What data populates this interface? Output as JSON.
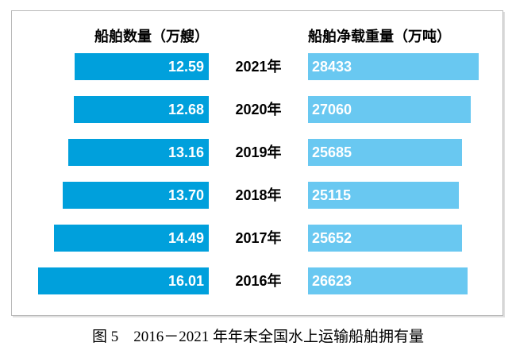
{
  "headers": {
    "left": "船舶数量（万艘）",
    "right": "船舶净载重量（万吨）"
  },
  "rows": [
    {
      "year": "2021年",
      "quantity": "12.59",
      "weight": "28433"
    },
    {
      "year": "2020年",
      "quantity": "12.68",
      "weight": "27060"
    },
    {
      "year": "2019年",
      "quantity": "13.16",
      "weight": "25685"
    },
    {
      "year": "2018年",
      "quantity": "13.70",
      "weight": "25115"
    },
    {
      "year": "2017年",
      "quantity": "14.49",
      "weight": "25652"
    },
    {
      "year": "2016年",
      "quantity": "16.01",
      "weight": "26623"
    }
  ],
  "caption": "图 5　2016－2021 年年末全国水上运输船舶拥有量",
  "colors": {
    "quantity_bar": "#00a0dc",
    "weight_bar": "#69c8f1",
    "value_text": "#ffffff",
    "label_text": "#000000",
    "panel_border": "#b9b9b9"
  },
  "chart_data": {
    "type": "bar",
    "orientation": "horizontal-diverging-tornado",
    "categories": [
      "2021年",
      "2020年",
      "2019年",
      "2018年",
      "2017年",
      "2016年"
    ],
    "series": [
      {
        "name": "船舶数量（万艘）",
        "side": "left",
        "values": [
          12.59,
          12.68,
          13.16,
          13.7,
          14.49,
          16.01
        ],
        "color": "#00a0dc"
      },
      {
        "name": "船舶净载重量（万吨）",
        "side": "right",
        "values": [
          28433,
          27060,
          25685,
          25115,
          25652,
          26623
        ],
        "color": "#69c8f1"
      }
    ],
    "title": "图 5　2016－2021 年年末全国水上运输船舶拥有量",
    "value_labels": "inside-bars",
    "axes": "none (no ticks or gridlines, value labels only)",
    "legend_position": "column headers above each bar group",
    "left_scale_max": 16.01,
    "right_scale_max": 28433
  }
}
